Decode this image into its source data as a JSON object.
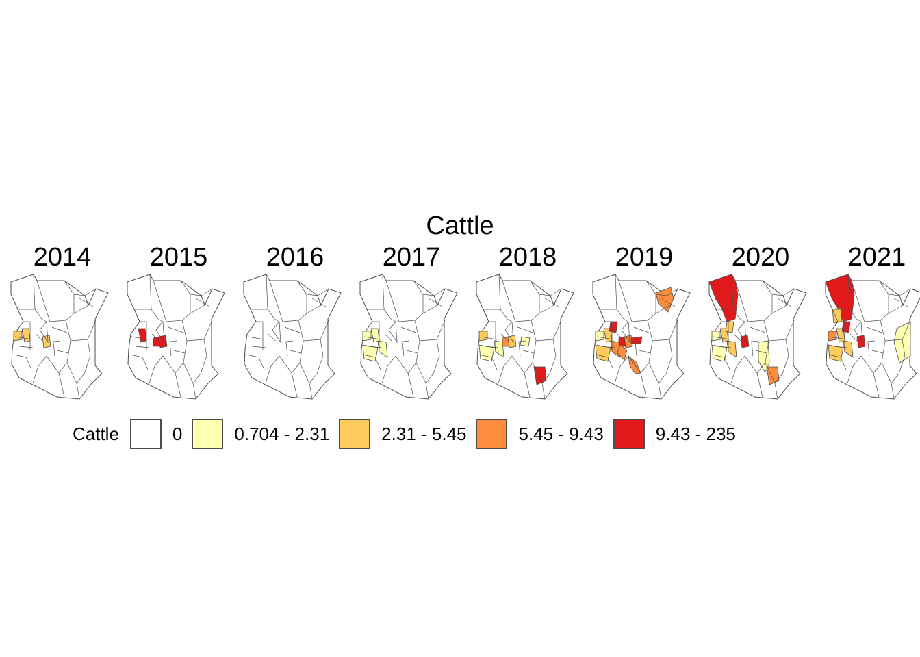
{
  "figure": {
    "title": "Cattle",
    "legend": {
      "title": "Cattle",
      "items": [
        {
          "label": "0",
          "color": "#ffffff"
        },
        {
          "label": "0.704 - 2.31",
          "color": "#ffffb2"
        },
        {
          "label": "2.31 - 5.45",
          "color": "#fecc5c"
        },
        {
          "label": "5.45 - 9.43",
          "color": "#fd8d3c"
        },
        {
          "label": "9.43 - 235",
          "color": "#e31a1c"
        }
      ]
    },
    "panels": [
      {
        "year": "2014",
        "filled": {
          "west_a": 2,
          "west_b": 2,
          "central_a": 2
        }
      },
      {
        "year": "2015",
        "filled": {
          "west_a": 4,
          "central_a": 4,
          "central_b": 4
        }
      },
      {
        "year": "2016",
        "filled": {}
      },
      {
        "year": "2017",
        "filled": {
          "west_a": 1,
          "west_b": 1,
          "mid_strip": 1,
          "south_a": 1
        }
      },
      {
        "year": "2018",
        "filled": {
          "west_b": 2,
          "south_a": 1,
          "mid_strip": 1,
          "central_a": 2,
          "central_b": 3,
          "east_strip": 1,
          "coast_south": 4
        }
      },
      {
        "year": "2019",
        "filled": {
          "northeast": 3,
          "west_a": 2,
          "west_b": 1,
          "central_a": 3,
          "central_c": 4,
          "central_b": 4,
          "mid_strip": 3,
          "south_a": 2,
          "tana_south": 3,
          "south_b": 3,
          "east_spot": 4
        }
      },
      {
        "year": "2020",
        "filled": {
          "north_west": 4,
          "west_a": 2,
          "west_b": 1,
          "central_a": 4,
          "central_c": 2,
          "mid_strip": 2,
          "south_a": 1,
          "tana_lower": 1,
          "coast_south": 3
        }
      },
      {
        "year": "2021",
        "filled": {
          "north_west": 4,
          "upper_mid": 2,
          "west_a": 2,
          "west_b": 3,
          "central_a": 4,
          "central_c": 4,
          "south_a": 2,
          "mid_strip": 2,
          "east_big": 1
        }
      }
    ]
  }
}
